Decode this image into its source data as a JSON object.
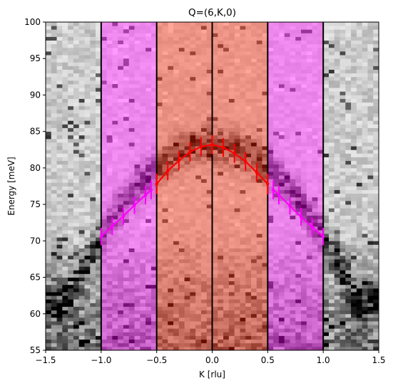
{
  "chart_data": {
    "type": "heatmap",
    "title": "Q=(6,K,0)",
    "xlabel": "K [rlu]",
    "ylabel": "Energy [meV]",
    "xlim": [
      -1.5,
      1.5
    ],
    "ylim": [
      55,
      100
    ],
    "x_ticks": [
      -1.5,
      -1.0,
      -0.5,
      0.0,
      0.5,
      1.0,
      1.5
    ],
    "x_tick_labels": [
      "−1.5",
      "−1.0",
      "−0.5",
      "0.0",
      "0.5",
      "1.0",
      "1.5"
    ],
    "y_ticks": [
      55,
      60,
      65,
      70,
      75,
      80,
      85,
      90,
      95,
      100
    ],
    "y_tick_labels": [
      "55",
      "60",
      "65",
      "70",
      "75",
      "80",
      "85",
      "90",
      "95",
      "100"
    ],
    "colormap": "greys",
    "grid": false,
    "shaded_regions": [
      {
        "x_range": [
          -1.0,
          -0.5
        ],
        "color": "#ff00ff",
        "alpha": 0.4
      },
      {
        "x_range": [
          -0.5,
          0.5
        ],
        "color": "#ff2000",
        "alpha": 0.4
      },
      {
        "x_range": [
          0.5,
          1.0
        ],
        "color": "#ff00ff",
        "alpha": 0.4
      }
    ],
    "vertical_lines": [
      -1.0,
      -0.5,
      0.0,
      0.5,
      1.0
    ],
    "dispersion": {
      "description_series": [
        {
          "name": "",
          "color": "#ff00ff",
          "points": [
            {
              "x": -1.0,
              "y": 70.6,
              "err": 1.2
            },
            {
              "x": -0.9,
              "y": 72.0,
              "err": 1.2
            },
            {
              "x": -0.8,
              "y": 73.4,
              "err": 1.2
            },
            {
              "x": -0.7,
              "y": 74.9,
              "err": 1.2
            },
            {
              "x": -0.6,
              "y": 76.3,
              "err": 1.3
            },
            {
              "x": -0.55,
              "y": 77.0,
              "err": 1.3
            }
          ]
        },
        {
          "name": "",
          "color": "#ff0000",
          "points": [
            {
              "x": -0.5,
              "y": 77.8,
              "err": 1.4
            },
            {
              "x": -0.4,
              "y": 79.6,
              "err": 1.3
            },
            {
              "x": -0.3,
              "y": 81.0,
              "err": 1.3
            },
            {
              "x": -0.2,
              "y": 82.2,
              "err": 1.3
            },
            {
              "x": -0.1,
              "y": 82.9,
              "err": 1.3
            },
            {
              "x": 0.0,
              "y": 83.2,
              "err": 1.3
            },
            {
              "x": 0.1,
              "y": 82.8,
              "err": 1.3
            },
            {
              "x": 0.2,
              "y": 82.0,
              "err": 1.3
            },
            {
              "x": 0.3,
              "y": 80.9,
              "err": 1.3
            },
            {
              "x": 0.4,
              "y": 79.4,
              "err": 1.3
            },
            {
              "x": 0.5,
              "y": 77.8,
              "err": 1.4
            }
          ]
        },
        {
          "name": "",
          "color": "#ff00ff",
          "points": [
            {
              "x": 0.55,
              "y": 77.0,
              "err": 1.3
            },
            {
              "x": 0.6,
              "y": 76.3,
              "err": 1.3
            },
            {
              "x": 0.7,
              "y": 74.8,
              "err": 1.2
            },
            {
              "x": 0.8,
              "y": 73.3,
              "err": 1.2
            },
            {
              "x": 0.9,
              "y": 71.9,
              "err": 1.2
            },
            {
              "x": 1.0,
              "y": 70.6,
              "err": 1.2
            }
          ]
        }
      ]
    }
  }
}
